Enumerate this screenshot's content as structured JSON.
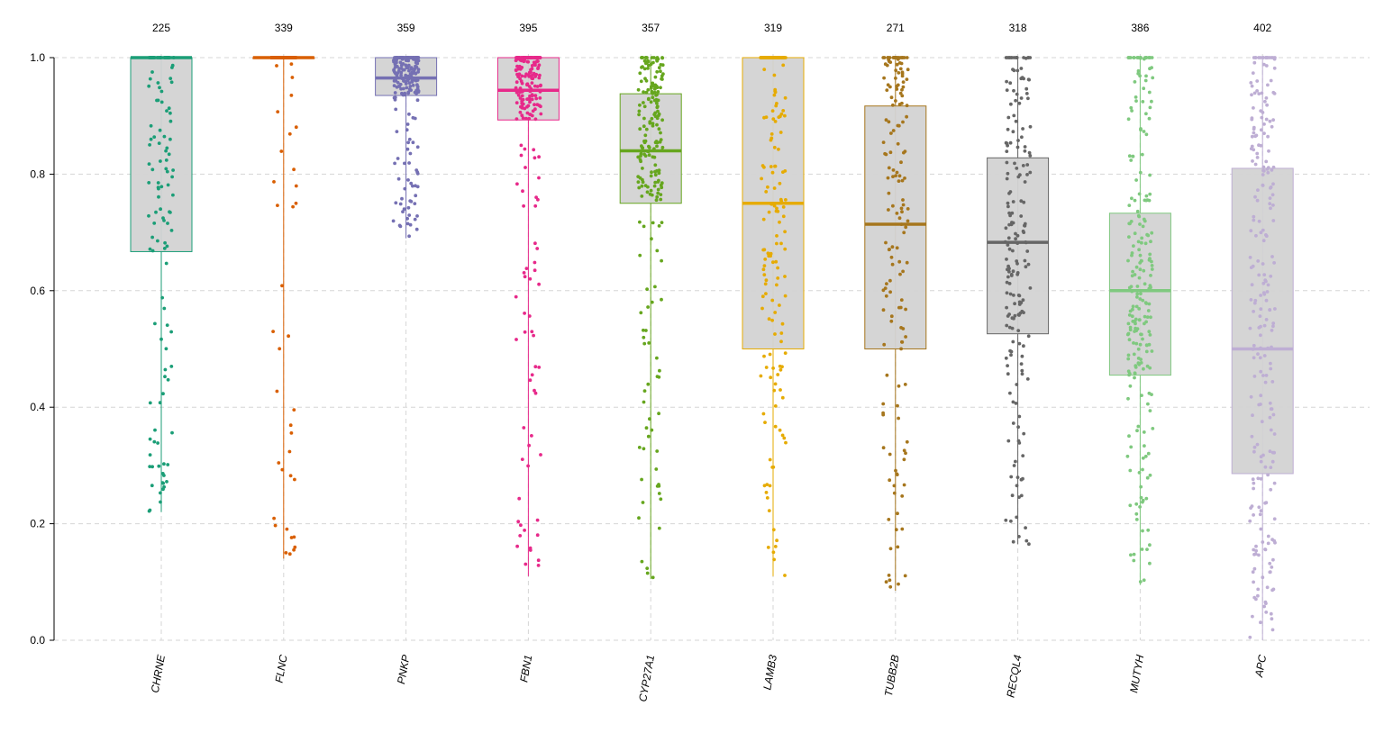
{
  "chart_data": {
    "type": "box",
    "ylim": [
      0,
      1
    ],
    "yticks": [
      "0.0",
      "0.2",
      "0.4",
      "0.6",
      "0.8",
      "1.0"
    ],
    "grid": true,
    "categories": [
      "CHRNE",
      "FLNC",
      "PNKP",
      "FBN1",
      "CYP27A1",
      "LAMB3",
      "TUBB2B",
      "RECQL4",
      "MUTYH",
      "APC"
    ],
    "counts": [
      "225",
      "339",
      "359",
      "395",
      "357",
      "319",
      "271",
      "318",
      "386",
      "402"
    ],
    "boxes": [
      {
        "name": "CHRNE",
        "color": "#1b9e77",
        "q1": 0.667,
        "median": 1.0,
        "q3": 1.0,
        "min": 0.22,
        "max": 1.0
      },
      {
        "name": "FLNC",
        "color": "#d95f02",
        "q1": 1.0,
        "median": 1.0,
        "q3": 1.0,
        "min": 0.14,
        "max": 1.0
      },
      {
        "name": "PNKP",
        "color": "#7570b3",
        "q1": 0.935,
        "median": 0.965,
        "q3": 1.0,
        "min": 0.69,
        "max": 1.0
      },
      {
        "name": "FBN1",
        "color": "#e7298a",
        "q1": 0.893,
        "median": 0.944,
        "q3": 1.0,
        "min": 0.11,
        "max": 1.0
      },
      {
        "name": "CYP27A1",
        "color": "#66a61e",
        "q1": 0.75,
        "median": 0.84,
        "q3": 0.938,
        "min": 0.105,
        "max": 1.0
      },
      {
        "name": "LAMB3",
        "color": "#e6ab02",
        "q1": 0.5,
        "median": 0.75,
        "q3": 1.0,
        "min": 0.11,
        "max": 1.0
      },
      {
        "name": "TUBB2B",
        "color": "#a6761d",
        "q1": 0.5,
        "median": 0.714,
        "q3": 0.917,
        "min": 0.085,
        "max": 1.0
      },
      {
        "name": "RECQL4",
        "color": "#666666",
        "q1": 0.526,
        "median": 0.683,
        "q3": 0.828,
        "min": 0.165,
        "max": 1.0
      },
      {
        "name": "MUTYH",
        "color": "#7fc97f",
        "q1": 0.455,
        "median": 0.6,
        "q3": 0.733,
        "min": 0.095,
        "max": 1.0
      },
      {
        "name": "APC",
        "color": "#beaed4",
        "q1": 0.286,
        "median": 0.5,
        "q3": 0.81,
        "min": 0.0,
        "max": 1.0
      }
    ]
  }
}
